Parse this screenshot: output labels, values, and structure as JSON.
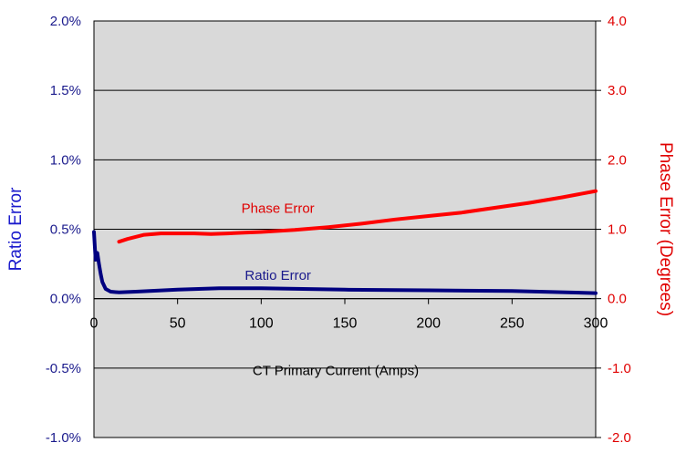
{
  "chart_data": {
    "type": "line",
    "xlabel": "CT Primary Current (Amps)",
    "ylabel_left": "Ratio Error",
    "ylabel_right": "Phase Error (Degrees)",
    "x_ticks": [
      "0",
      "50",
      "100",
      "150",
      "200",
      "250",
      "300"
    ],
    "y_left_ticks": [
      "2.0%",
      "1.5%",
      "1.0%",
      "0.5%",
      "0.0%",
      "-0.5%",
      "-1.0%"
    ],
    "y_right_ticks": [
      "4.0",
      "3.0",
      "2.0",
      "1.0",
      "0.0",
      "-1.0",
      "-2.0"
    ],
    "xlim": [
      0,
      300
    ],
    "ylim_left": [
      -1.0,
      2.0
    ],
    "ylim_right": [
      -2.0,
      4.0
    ],
    "grid": "horizontal",
    "series": [
      {
        "name": "Phase Error",
        "axis": "right",
        "color": "#ff0000",
        "x": [
          15,
          20,
          30,
          40,
          50,
          60,
          70,
          80,
          90,
          100,
          120,
          140,
          160,
          180,
          200,
          220,
          240,
          260,
          280,
          300
        ],
        "y": [
          0.82,
          0.86,
          0.92,
          0.94,
          0.94,
          0.94,
          0.93,
          0.94,
          0.95,
          0.96,
          0.99,
          1.03,
          1.08,
          1.14,
          1.19,
          1.24,
          1.31,
          1.38,
          1.46,
          1.55
        ]
      },
      {
        "name": "Ratio Error",
        "axis": "left",
        "color": "#000080",
        "x": [
          0,
          0.5,
          1,
          2,
          3,
          4,
          5,
          7,
          10,
          15,
          25,
          50,
          75,
          100,
          125,
          150,
          200,
          250,
          300
        ],
        "y": [
          0.48,
          0.38,
          0.28,
          0.33,
          0.25,
          0.18,
          0.12,
          0.07,
          0.05,
          0.045,
          0.05,
          0.065,
          0.075,
          0.075,
          0.07,
          0.065,
          0.06,
          0.055,
          0.04
        ]
      }
    ],
    "annotations": [
      {
        "text": "Phase Error",
        "x": 110,
        "y_right": 1.3
      },
      {
        "text": "Ratio Error",
        "x": 110,
        "y_left": 0.17
      }
    ]
  }
}
